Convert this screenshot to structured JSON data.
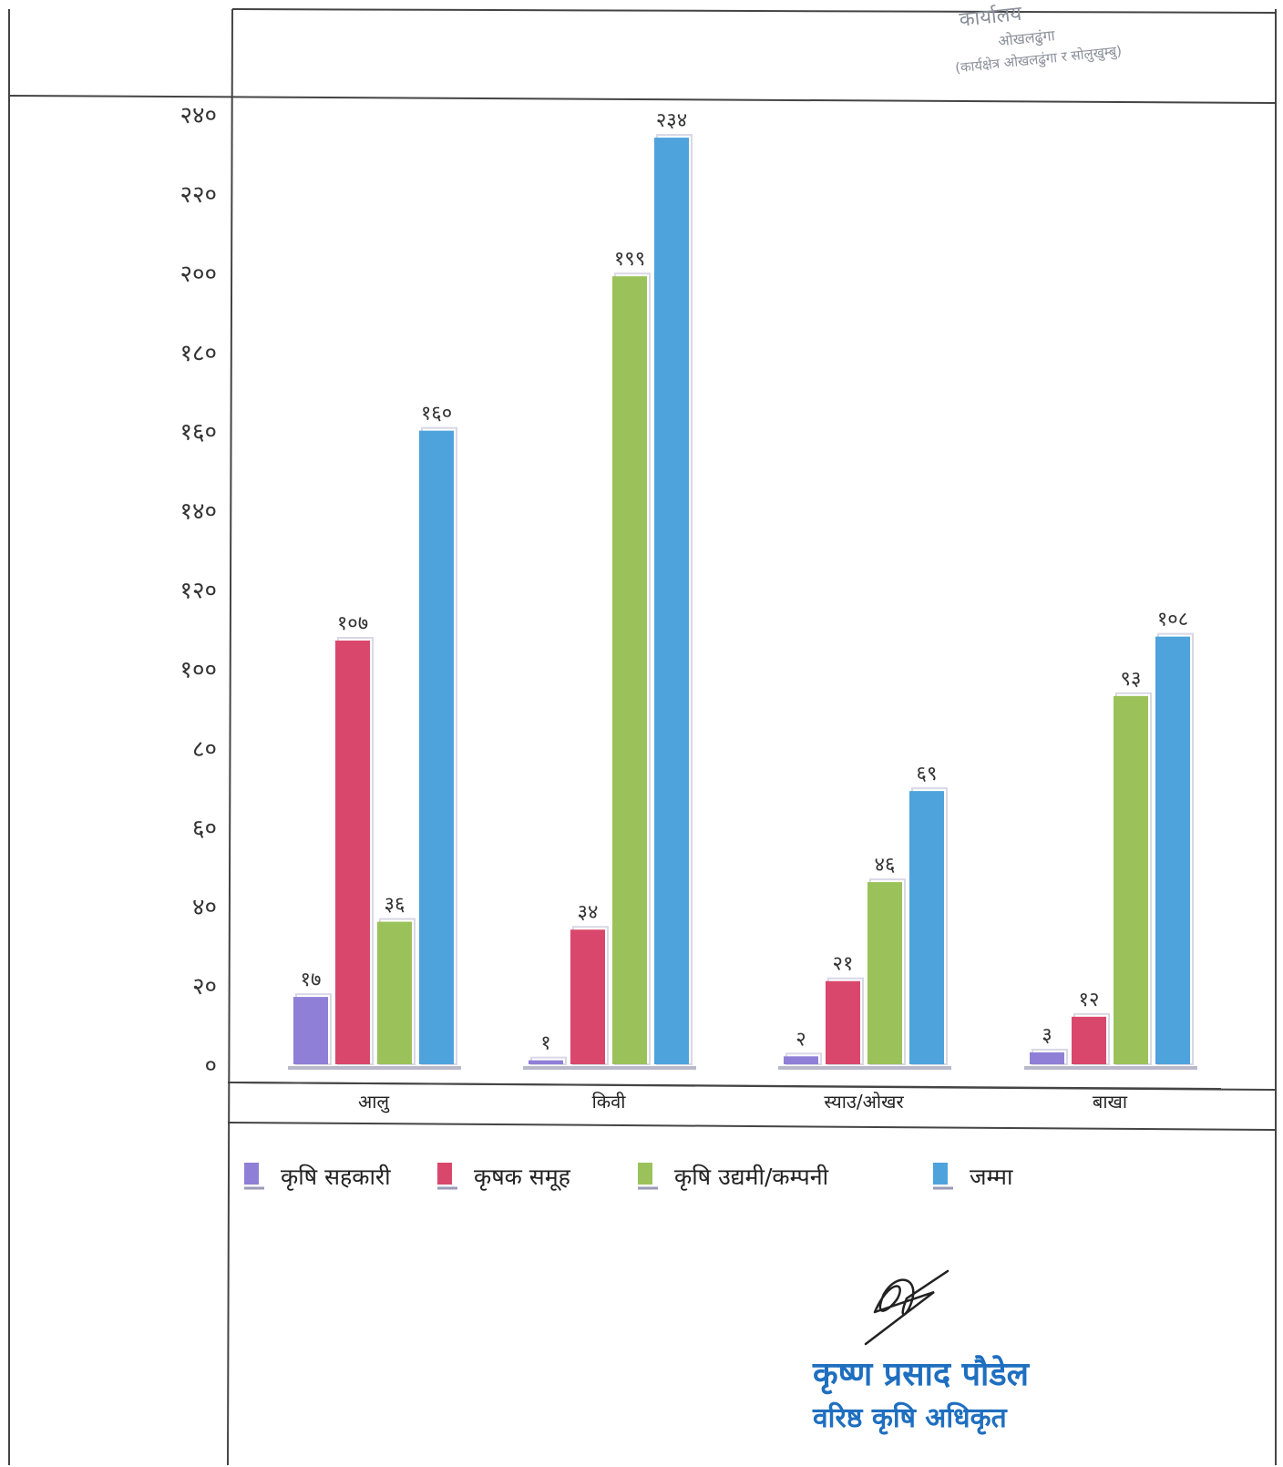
{
  "chart_data": {
    "type": "bar",
    "categories": [
      "आलु",
      "किवी",
      "स्याउ/ओखर",
      "बाखा"
    ],
    "series": [
      {
        "name": "कृषि सहकारी",
        "values": [
          17,
          1,
          2,
          3
        ],
        "labels": [
          "१७",
          "१",
          "२",
          "३"
        ],
        "color": "#8f7fd6"
      },
      {
        "name": "कृषक समूह",
        "values": [
          107,
          34,
          21,
          12
        ],
        "labels": [
          "१०७",
          "३४",
          "२१",
          "१२"
        ],
        "color": "#d9486c"
      },
      {
        "name": "कृषि उद्यमी/कम्पनी",
        "values": [
          36,
          199,
          46,
          93
        ],
        "labels": [
          "३६",
          "१९९",
          "४६",
          "९३"
        ],
        "color": "#9bc25a"
      },
      {
        "name": "जम्मा",
        "values": [
          160,
          234,
          69,
          108
        ],
        "labels": [
          "१६०",
          "२३४",
          "६९",
          "१०८"
        ],
        "color": "#4ea3dc"
      }
    ],
    "ylim": [
      0,
      240
    ],
    "yticks": [
      0,
      20,
      40,
      60,
      80,
      100,
      120,
      140,
      160,
      180,
      200,
      220,
      240
    ],
    "ytick_labels": [
      "०",
      "२०",
      "४०",
      "६०",
      "८०",
      "१००",
      "१२०",
      "१४०",
      "१६०",
      "१८०",
      "२००",
      "२२०",
      "२४०"
    ],
    "grid": false,
    "legend_position": "bottom"
  },
  "stamp": {
    "line1": "कार्यालय",
    "line2": "ओखलढुंगा",
    "line3": "(कार्यक्षेत्र ओखलढुंगा र सोलुखुम्बु)"
  },
  "signatory": {
    "name": "कृष्ण प्रसाद पौडेल",
    "title": "वरिष्ठ कृषि अधिकृत"
  }
}
